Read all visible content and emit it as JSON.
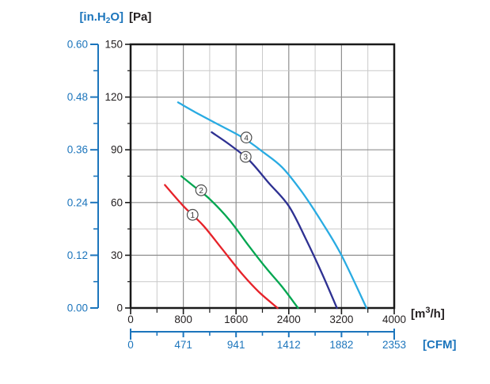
{
  "units": {
    "in_h2o": {
      "pre": "[in.H",
      "sub": "2",
      "post": "O]"
    },
    "pa": "[Pa]",
    "m3h": {
      "pre": "[m",
      "sup": "3",
      "post": "/h]"
    },
    "cfm": "[CFM]"
  },
  "colors": {
    "axis_blue": "#1c75bc",
    "ink": "#231f20",
    "border": "#1a1a1a",
    "grid_major": "#8f8f8f",
    "grid_minor": "#c9c9c9",
    "curve1_red": "#e62229",
    "curve2_green": "#00a650",
    "curve3_navy": "#2e3192",
    "curve4_cyan": "#29abe2",
    "marker_stroke": "#4d4d4d",
    "marker_fill": "#ffffff"
  },
  "chart_data": {
    "type": "line",
    "x_axis": {
      "label": "[m3/h]",
      "range": [
        0,
        4000
      ],
      "ticks": [
        0,
        800,
        1600,
        2400,
        3200,
        4000
      ],
      "minor_step": 400
    },
    "x_axis_secondary": {
      "label": "[CFM]",
      "ticks": [
        "0",
        "471",
        "941",
        "1412",
        "1882",
        "2353"
      ]
    },
    "y_axis": {
      "label": "[Pa]",
      "range": [
        0,
        150
      ],
      "ticks": [
        0,
        30,
        60,
        90,
        120,
        150
      ],
      "minor_step": 15
    },
    "y_axis_secondary": {
      "label": "[in.H2O]",
      "ticks_top_down": [
        "0.60",
        "0.48",
        "0.36",
        "0.24",
        "0.12",
        "0.00"
      ]
    },
    "grid": "major+minor",
    "legend": "numbered circles on curves",
    "series": [
      {
        "name": "1",
        "color_key": "curve1_red",
        "points": [
          [
            520,
            70
          ],
          [
            800,
            58
          ],
          [
            1100,
            47
          ],
          [
            1400,
            33
          ],
          [
            1700,
            19
          ],
          [
            1950,
            9
          ],
          [
            2230,
            0
          ]
        ]
      },
      {
        "name": "2",
        "color_key": "curve2_green",
        "points": [
          [
            770,
            75
          ],
          [
            1000,
            68
          ],
          [
            1200,
            62
          ],
          [
            1500,
            50
          ],
          [
            1800,
            35
          ],
          [
            2050,
            23
          ],
          [
            2300,
            12
          ],
          [
            2540,
            0
          ]
        ]
      },
      {
        "name": "3",
        "color_key": "curve3_navy",
        "points": [
          [
            1230,
            100
          ],
          [
            1500,
            93
          ],
          [
            1800,
            84
          ],
          [
            2100,
            71
          ],
          [
            2400,
            58
          ],
          [
            2650,
            40
          ],
          [
            2900,
            20
          ],
          [
            3130,
            0
          ]
        ]
      },
      {
        "name": "4",
        "color_key": "curve4_cyan",
        "points": [
          [
            720,
            117
          ],
          [
            1000,
            111
          ],
          [
            1300,
            105
          ],
          [
            1700,
            97
          ],
          [
            2000,
            89
          ],
          [
            2300,
            80
          ],
          [
            2600,
            66
          ],
          [
            2900,
            49
          ],
          [
            3200,
            30
          ],
          [
            3580,
            0
          ]
        ]
      }
    ],
    "curve_labels": [
      {
        "text": "1",
        "at": [
          940,
          53
        ]
      },
      {
        "text": "2",
        "at": [
          1070,
          67
        ]
      },
      {
        "text": "3",
        "at": [
          1745,
          86
        ]
      },
      {
        "text": "4",
        "at": [
          1755,
          97
        ]
      }
    ]
  }
}
